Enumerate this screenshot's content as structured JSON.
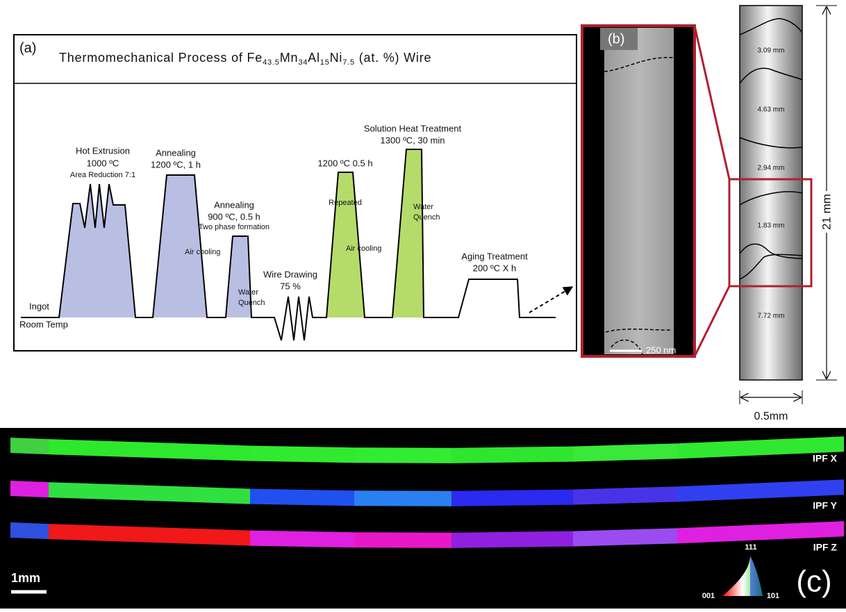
{
  "panel_a": {
    "label": "(a)",
    "title": [
      {
        "text": "Thermomechanical Process of Fe",
        "sub": "43.5"
      },
      {
        "text": "Mn",
        "sub": "34"
      },
      {
        "text": "Al",
        "sub": "15"
      },
      {
        "text": "Ni",
        "sub": "7.5"
      },
      {
        "text": " (at. %) Wire"
      }
    ],
    "hot_extrusion": {
      "name": "Hot Extrusion",
      "temp": "1000 ºC",
      "detail": "Area Reduction 7:1"
    },
    "annealing_1": {
      "name": "Annealing",
      "temp": "1200 ºC, 1 h",
      "cooling": "Air cooling"
    },
    "annealing_2": {
      "name": "Annealing",
      "temp": "900 ºC, 0.5 h",
      "detail": "Two phase formation",
      "cooling": [
        "Water",
        "Quench"
      ]
    },
    "wire_drawing": {
      "name": "Wire Drawing",
      "detail": "75 %"
    },
    "repeated_anneal": {
      "temp": "1200 ºC 0.5 h",
      "note": "Repeated",
      "cooling": "Air cooling"
    },
    "solution": {
      "name": "Solution Heat Treatment",
      "temp": "1300 ºC, 30 min",
      "cooling": [
        "Water",
        "Quench"
      ]
    },
    "aging": {
      "name": "Aging Treatment",
      "temp": "200 ºC X h"
    },
    "start": "Ingot",
    "baseline": "Room Temp"
  },
  "panel_b": {
    "label": "(b)",
    "scale_bar": "250 nm"
  },
  "wire": {
    "segments": [
      "3.09 mm",
      "4.63 mm",
      "2.94 mm",
      "1.83 mm",
      "7.72 mm"
    ],
    "length": "21 mm",
    "diameter": "0.5mm"
  },
  "panel_c": {
    "label": "(c)",
    "maps": [
      "IPF X",
      "IPF Y",
      "IPF Z"
    ],
    "scale_bar": "1mm",
    "triangle": {
      "top": "111",
      "left": "001",
      "right": "101"
    }
  }
}
